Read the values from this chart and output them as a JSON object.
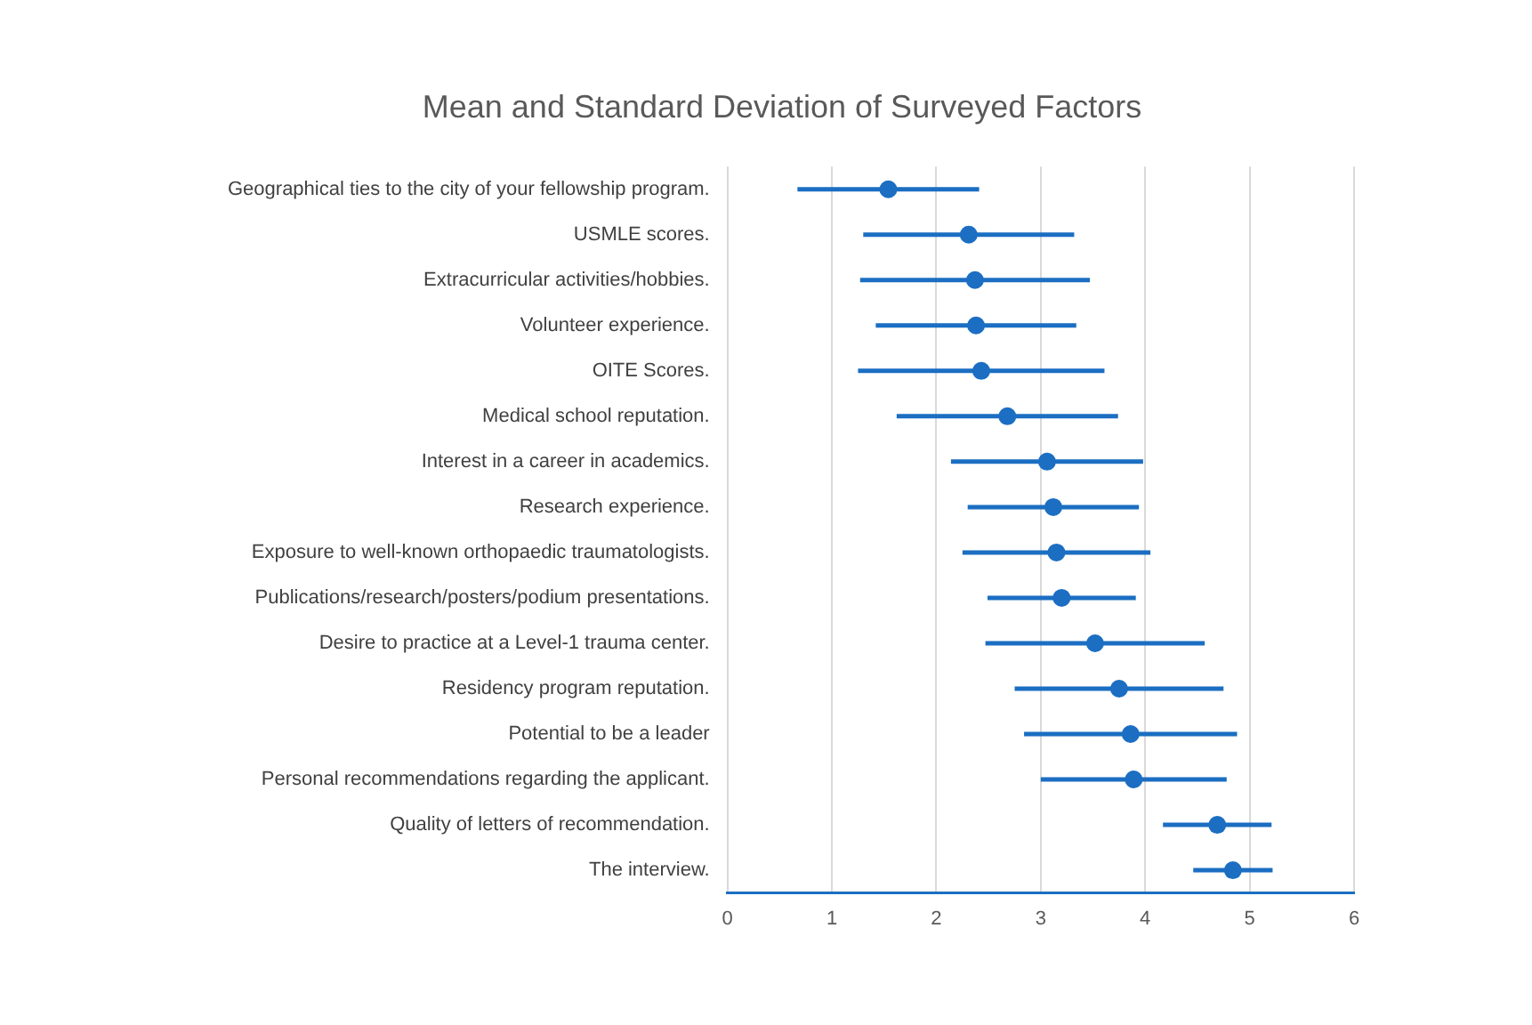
{
  "chart_data": {
    "type": "scatter",
    "orientation": "horizontal",
    "title": "Mean and Standard Deviation of Surveyed Factors",
    "categories": [
      "Geographical ties to the city of your fellowship program.",
      "USMLE scores.",
      "Extracurricular activities/hobbies.",
      "Volunteer experience.",
      "OITE Scores.",
      "Medical school reputation.",
      "Interest in a career in academics.",
      "Research experience.",
      "Exposure to well-known orthopaedic traumatologists.",
      "Publications/research/posters/podium presentations.",
      "Desire to practice at a Level-1 trauma center.",
      "Residency program reputation.",
      "Potential to be a leader",
      "Personal recommendations regarding the applicant.",
      "Quality of letters of recommendation.",
      "The interview."
    ],
    "values": [
      1.54,
      2.31,
      2.37,
      2.38,
      2.43,
      2.68,
      3.06,
      3.12,
      3.15,
      3.2,
      3.52,
      3.75,
      3.86,
      3.89,
      4.69,
      4.84
    ],
    "errors": [
      0.87,
      1.01,
      1.1,
      0.96,
      1.18,
      1.06,
      0.92,
      0.82,
      0.9,
      0.71,
      1.05,
      1.0,
      1.02,
      0.89,
      0.52,
      0.38
    ],
    "color": "#1b6ec2",
    "marker": "circle",
    "xlim": [
      0,
      6
    ],
    "xticks": [
      0,
      1,
      2,
      3,
      4,
      5,
      6
    ],
    "grid": "x",
    "legend": false
  }
}
